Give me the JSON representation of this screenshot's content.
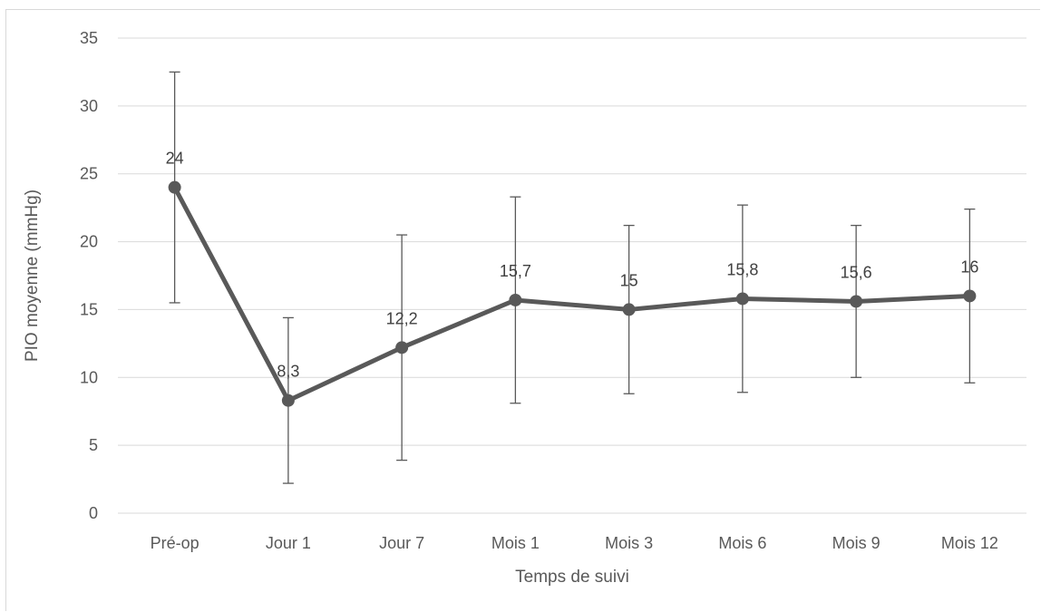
{
  "chart_data": {
    "type": "line",
    "categories": [
      "Pré-op",
      "Jour 1",
      "Jour 7",
      "Mois 1",
      "Mois 3",
      "Mois 6",
      "Mois 9",
      "Mois 12"
    ],
    "series": [
      {
        "values": [
          24,
          8.3,
          12.2,
          15.7,
          15,
          15.8,
          15.6,
          16
        ],
        "labels": [
          "24",
          "8,3",
          "12,2",
          "15,7",
          "15",
          "15,8",
          "15,6",
          "16"
        ],
        "error_low": [
          15.5,
          2.2,
          3.9,
          8.1,
          8.8,
          8.9,
          10.0,
          9.6
        ],
        "error_high": [
          32.5,
          14.4,
          20.5,
          23.3,
          21.2,
          22.7,
          21.2,
          22.4
        ],
        "color": "#595959"
      }
    ],
    "xlabel": "Temps de suivi",
    "ylabel": "PIO moyenne (mmHg)",
    "ylim": [
      0,
      35
    ],
    "yticks": [
      "0",
      "5",
      "10",
      "15",
      "20",
      "25",
      "30",
      "35"
    ],
    "grid": true,
    "gridColor": "#d9d9d9"
  }
}
